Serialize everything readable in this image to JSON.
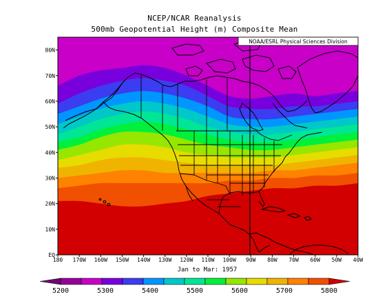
{
  "title": "NCEP/NCAR Reanalysis",
  "subtitle": "500mb Geopotential Height (m) Composite Mean",
  "credit": "NOAA/ESRL Physical Sciences Division",
  "period_label": "Jan to Mar: 1957",
  "chart_data": {
    "type": "heatmap",
    "variable": "500mb Geopotential Height",
    "units": "m",
    "x_axis": {
      "range": [
        -180,
        -40
      ],
      "ticks": [
        "180",
        "170W",
        "160W",
        "150W",
        "140W",
        "130W",
        "120W",
        "110W",
        "100W",
        "90W",
        "80W",
        "70W",
        "60W",
        "50W",
        "40W"
      ]
    },
    "y_axis": {
      "range": [
        0,
        85
      ],
      "ticks": [
        "EQ",
        "10N",
        "20N",
        "30N",
        "40N",
        "50N",
        "60N",
        "70N",
        "80N"
      ]
    },
    "levels": [
      5200,
      5250,
      5300,
      5350,
      5400,
      5450,
      5500,
      5550,
      5600,
      5650,
      5700,
      5750,
      5800
    ],
    "colorbar_labels": [
      "5200",
      "5300",
      "5400",
      "5500",
      "5600",
      "5700",
      "5800"
    ],
    "colors": [
      "#6e0a6e",
      "#96009b",
      "#c800c8",
      "#7800dc",
      "#3c3cf0",
      "#0096ff",
      "#00c8c8",
      "#00e696",
      "#00f03c",
      "#96e600",
      "#e6dc00",
      "#f0b400",
      "#ff8200",
      "#f05000",
      "#d20000"
    ],
    "contour_bands": [
      {
        "value_above": 5200,
        "lats": [
          66,
          70,
          72,
          73,
          74,
          73,
          70,
          66,
          62,
          61,
          62,
          63,
          62,
          63,
          64
        ]
      },
      {
        "value_above": 5250,
        "lats": [
          59,
          63,
          66,
          68,
          69,
          68,
          66,
          62,
          58,
          57,
          57,
          58,
          58,
          59,
          60
        ]
      },
      {
        "value_above": 5300,
        "lats": [
          55,
          58,
          61,
          63,
          64,
          63,
          61,
          58,
          54,
          53,
          53,
          54,
          55,
          56,
          57
        ]
      },
      {
        "value_above": 5350,
        "lats": [
          51,
          54,
          57,
          59,
          60,
          59,
          57,
          54,
          51,
          50,
          50,
          51,
          52,
          53,
          54
        ]
      },
      {
        "value_above": 5400,
        "lats": [
          47,
          50,
          53,
          55,
          56,
          55,
          53,
          50,
          48,
          47,
          47,
          48,
          49,
          50,
          51
        ]
      },
      {
        "value_above": 5450,
        "lats": [
          44,
          46,
          49,
          51,
          52,
          51,
          49,
          47,
          45,
          44,
          44,
          45,
          46,
          47,
          48
        ]
      },
      {
        "value_above": 5500,
        "lats": [
          41,
          43,
          46,
          48,
          48,
          47,
          45,
          43,
          42,
          41,
          41,
          42,
          43,
          44,
          45
        ]
      },
      {
        "value_above": 5550,
        "lats": [
          37,
          39,
          41,
          43,
          43,
          42,
          40,
          39,
          38,
          38,
          38,
          39,
          40,
          41,
          42
        ]
      },
      {
        "value_above": 5600,
        "lats": [
          34,
          35,
          37,
          38,
          38,
          37,
          36,
          35,
          35,
          35,
          35,
          36,
          37,
          38,
          39
        ]
      },
      {
        "value_above": 5650,
        "lats": [
          30,
          31,
          32,
          33,
          33,
          32,
          32,
          32,
          32,
          32,
          33,
          33,
          34,
          35,
          36
        ]
      },
      {
        "value_above": 5700,
        "lats": [
          26,
          27,
          28,
          28,
          28,
          28,
          28,
          28,
          29,
          29,
          30,
          30,
          31,
          31,
          32
        ]
      },
      {
        "value_above": 5750,
        "lats": [
          21,
          21,
          20,
          19,
          19,
          20,
          21,
          23,
          24,
          25,
          26,
          26,
          27,
          27,
          28
        ]
      }
    ]
  },
  "icons": {
    "colorbar_left": "triangle-left",
    "colorbar_right": "triangle-right"
  }
}
